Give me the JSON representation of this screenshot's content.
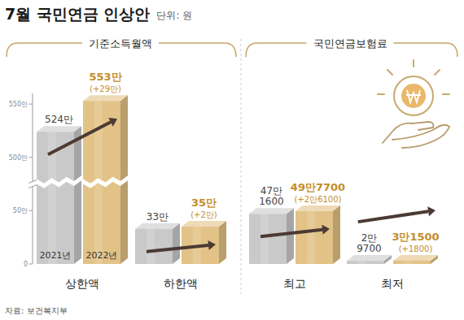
{
  "header": {
    "title": "7월 국민연금 인상안",
    "unit": "단위: 원"
  },
  "source": "자료: 보건복지부",
  "chart_data": [
    {
      "type": "bar",
      "title": "기준소득월액",
      "categories": [
        "상한액",
        "하한액"
      ],
      "series": [
        {
          "name": "2021년",
          "color": "#c9c9c9",
          "values": [
            5240000,
            330000
          ],
          "value_labels": [
            "524만",
            "33만"
          ]
        },
        {
          "name": "2022년",
          "color": "#e2c286",
          "values": [
            5530000,
            350000
          ],
          "value_labels": [
            "553만",
            "35만"
          ],
          "change_labels": [
            "(+29만)",
            "(+2만)"
          ]
        }
      ],
      "ylim": [
        0,
        5600000
      ],
      "yticks": [
        0,
        {
          "value": 500000,
          "label": "50만"
        },
        {
          "value": 5000000,
          "label": "500만"
        },
        {
          "value": 5500000,
          "label": "550만"
        }
      ],
      "data_labels": true,
      "grid": false
    },
    {
      "type": "bar",
      "title": "국민연금보험료",
      "categories": [
        "최고",
        "최저"
      ],
      "series": [
        {
          "color": "#c9c9c9",
          "values": [
            471600,
            29700
          ],
          "value_labels": [
            "47만\n1600",
            "2만\n9700"
          ]
        },
        {
          "color": "#e2c286",
          "values": [
            497700,
            31500
          ],
          "value_labels": [
            "49만7700",
            "3만1500"
          ],
          "change_labels": [
            "(+2만6100)",
            "(+1800)"
          ]
        }
      ],
      "ylim": [
        0,
        550000
      ],
      "tick_labels": false,
      "data_labels": true,
      "grid": false
    }
  ]
}
